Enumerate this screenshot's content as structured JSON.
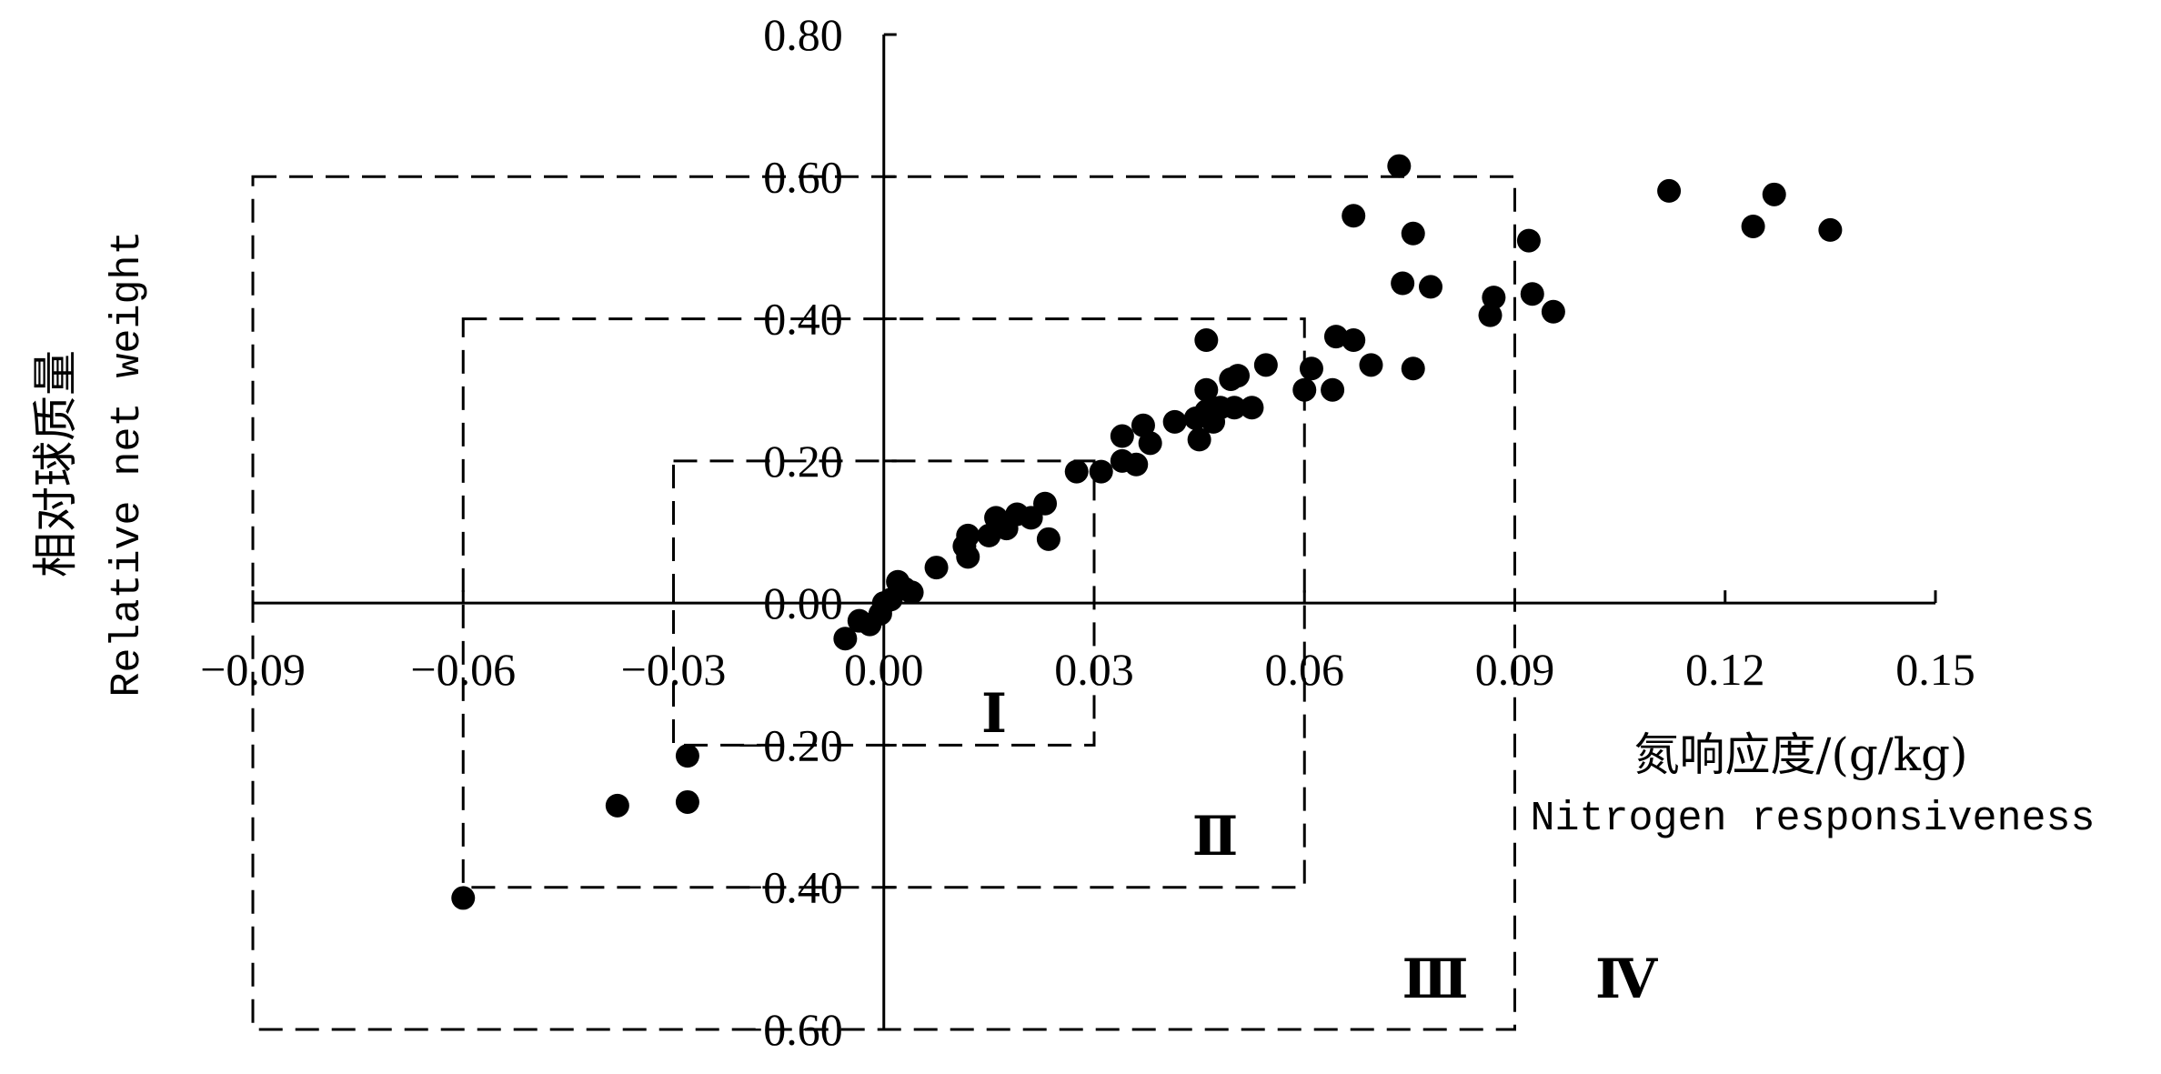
{
  "chart_data": {
    "type": "scatter",
    "x_axis": {
      "range": [
        -0.09,
        0.15
      ],
      "ticks": [
        -0.09,
        -0.06,
        -0.03,
        0.0,
        0.03,
        0.06,
        0.09,
        0.12,
        0.15
      ],
      "tick_labels": [
        "−0.09",
        "−0.06",
        "−0.03",
        "0.00",
        "0.03",
        "0.06",
        "0.09",
        "0.12",
        "0.15"
      ],
      "title_cn": "氮响应度/(g/kg)",
      "title_en": "Nitrogen responsiveness"
    },
    "y_axis": {
      "range": [
        -0.6,
        0.8
      ],
      "ticks": [
        -0.6,
        -0.4,
        -0.2,
        0.0,
        0.2,
        0.4,
        0.6,
        0.8
      ],
      "tick_labels": [
        "−0.60",
        "−0.40",
        "−0.20",
        "0.00",
        "0.20",
        "0.40",
        "0.60",
        "0.80"
      ],
      "title_cn": "相对球质量",
      "title_en": "Relative net weight"
    },
    "grid": false,
    "regions": [
      {
        "label": "Ⅰ",
        "x_half_width": 0.03,
        "y_half_width": 0.2
      },
      {
        "label": "Ⅱ",
        "x_half_width": 0.06,
        "y_half_width": 0.4
      },
      {
        "label": "Ⅲ",
        "x_half_width": 0.09,
        "y_half_width": 0.6
      },
      {
        "label": "Ⅳ"
      }
    ],
    "points": [
      [
        -0.06,
        -0.415
      ],
      [
        -0.038,
        -0.285
      ],
      [
        -0.028,
        -0.215
      ],
      [
        -0.028,
        -0.28
      ],
      [
        -0.0055,
        -0.05
      ],
      [
        -0.0035,
        -0.025
      ],
      [
        -0.002,
        -0.03
      ],
      [
        -0.0005,
        -0.015
      ],
      [
        0.0,
        0.0
      ],
      [
        0.001,
        0.005
      ],
      [
        0.002,
        0.03
      ],
      [
        0.003,
        0.02
      ],
      [
        0.004,
        0.015
      ],
      [
        0.0075,
        0.05
      ],
      [
        0.0115,
        0.08
      ],
      [
        0.012,
        0.065
      ],
      [
        0.012,
        0.095
      ],
      [
        0.015,
        0.095
      ],
      [
        0.016,
        0.12
      ],
      [
        0.0175,
        0.105
      ],
      [
        0.019,
        0.125
      ],
      [
        0.021,
        0.12
      ],
      [
        0.023,
        0.14
      ],
      [
        0.0235,
        0.09
      ],
      [
        0.0275,
        0.185
      ],
      [
        0.031,
        0.185
      ],
      [
        0.034,
        0.2
      ],
      [
        0.034,
        0.235
      ],
      [
        0.036,
        0.195
      ],
      [
        0.037,
        0.25
      ],
      [
        0.038,
        0.225
      ],
      [
        0.0415,
        0.255
      ],
      [
        0.0445,
        0.26
      ],
      [
        0.045,
        0.23
      ],
      [
        0.046,
        0.37
      ],
      [
        0.046,
        0.3
      ],
      [
        0.046,
        0.27
      ],
      [
        0.047,
        0.255
      ],
      [
        0.048,
        0.275
      ],
      [
        0.0495,
        0.315
      ],
      [
        0.05,
        0.275
      ],
      [
        0.0505,
        0.32
      ],
      [
        0.0525,
        0.275
      ],
      [
        0.0545,
        0.335
      ],
      [
        0.06,
        0.3
      ],
      [
        0.061,
        0.33
      ],
      [
        0.064,
        0.3
      ],
      [
        0.0645,
        0.375
      ],
      [
        0.067,
        0.37
      ],
      [
        0.067,
        0.545
      ],
      [
        0.0695,
        0.335
      ],
      [
        0.0735,
        0.615
      ],
      [
        0.074,
        0.45
      ],
      [
        0.0755,
        0.33
      ],
      [
        0.0755,
        0.52
      ],
      [
        0.078,
        0.445
      ],
      [
        0.0865,
        0.405
      ],
      [
        0.087,
        0.43
      ],
      [
        0.092,
        0.51
      ],
      [
        0.0925,
        0.435
      ],
      [
        0.0955,
        0.41
      ],
      [
        0.112,
        0.58
      ],
      [
        0.124,
        0.53
      ],
      [
        0.127,
        0.575
      ],
      [
        0.135,
        0.525
      ]
    ]
  }
}
